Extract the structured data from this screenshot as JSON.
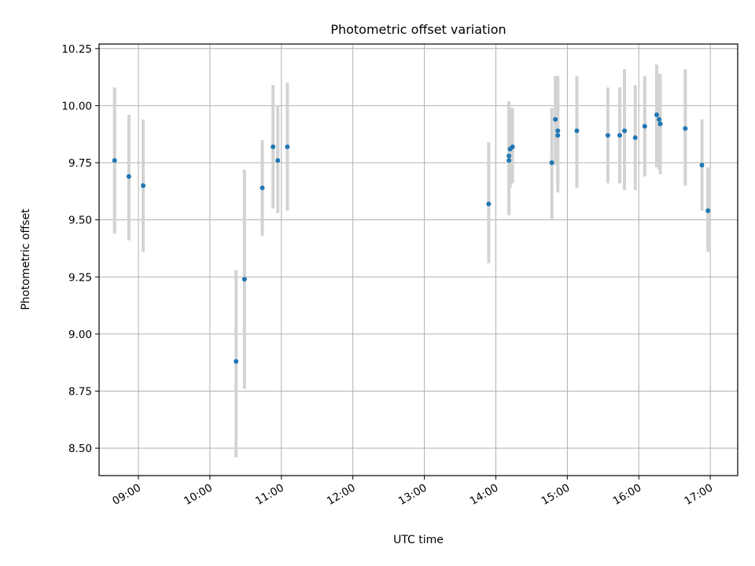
{
  "chart_data": {
    "type": "scatter",
    "title": "Photometric offset variation",
    "xlabel": "UTC time",
    "ylabel": "Photometric offset",
    "xlim": [
      "08:27",
      "17:23"
    ],
    "ylim": [
      8.38,
      10.27
    ],
    "xticks": [
      "09:00",
      "10:00",
      "11:00",
      "12:00",
      "13:00",
      "14:00",
      "15:00",
      "16:00",
      "17:00"
    ],
    "yticks": [
      "8.50",
      "8.75",
      "9.00",
      "9.25",
      "9.50",
      "9.75",
      "10.00",
      "10.25"
    ],
    "grid": true,
    "colors": {
      "points": "#1f77b4",
      "errorbars": "#d3d3d3",
      "grid": "#b0b0b0"
    },
    "points": [
      {
        "x": "08:40",
        "y": 9.76,
        "err_low": 9.44,
        "err_high": 10.08
      },
      {
        "x": "08:52",
        "y": 9.69,
        "err_low": 9.41,
        "err_high": 9.96
      },
      {
        "x": "09:04",
        "y": 9.65,
        "err_low": 9.36,
        "err_high": 9.94
      },
      {
        "x": "10:22",
        "y": 8.88,
        "err_low": 8.46,
        "err_high": 9.28
      },
      {
        "x": "10:29",
        "y": 9.24,
        "err_low": 8.76,
        "err_high": 9.72
      },
      {
        "x": "10:44",
        "y": 9.64,
        "err_low": 9.43,
        "err_high": 9.85
      },
      {
        "x": "10:53",
        "y": 9.82,
        "err_low": 9.55,
        "err_high": 10.09
      },
      {
        "x": "10:57",
        "y": 9.76,
        "err_low": 9.53,
        "err_high": 10.0
      },
      {
        "x": "11:05",
        "y": 9.82,
        "err_low": 9.54,
        "err_high": 10.1
      },
      {
        "x": "13:54",
        "y": 9.57,
        "err_low": 9.31,
        "err_high": 9.84
      },
      {
        "x": "14:11",
        "y": 9.78,
        "err_low": 9.53,
        "err_high": 10.02
      },
      {
        "x": "14:11",
        "y": 9.76,
        "err_low": 9.52,
        "err_high": 10.0
      },
      {
        "x": "14:12",
        "y": 9.81,
        "err_low": 9.64,
        "err_high": 9.99
      },
      {
        "x": "14:14",
        "y": 9.82,
        "err_low": 9.66,
        "err_high": 9.99
      },
      {
        "x": "14:47",
        "y": 9.75,
        "err_low": 9.5,
        "err_high": 9.99
      },
      {
        "x": "14:50",
        "y": 9.94,
        "err_low": 9.74,
        "err_high": 10.13
      },
      {
        "x": "14:52",
        "y": 9.89,
        "err_low": 9.62,
        "err_high": 10.13
      },
      {
        "x": "14:52",
        "y": 9.87,
        "err_low": 9.66,
        "err_high": 10.09
      },
      {
        "x": "15:08",
        "y": 9.89,
        "err_low": 9.64,
        "err_high": 10.13
      },
      {
        "x": "15:34",
        "y": 9.87,
        "err_low": 9.66,
        "err_high": 10.08
      },
      {
        "x": "15:44",
        "y": 9.87,
        "err_low": 9.66,
        "err_high": 10.08
      },
      {
        "x": "15:48",
        "y": 9.89,
        "err_low": 9.63,
        "err_high": 10.16
      },
      {
        "x": "15:57",
        "y": 9.86,
        "err_low": 9.63,
        "err_high": 10.09
      },
      {
        "x": "16:05",
        "y": 9.91,
        "err_low": 9.69,
        "err_high": 10.13
      },
      {
        "x": "16:15",
        "y": 9.96,
        "err_low": 9.73,
        "err_high": 10.18
      },
      {
        "x": "16:17",
        "y": 9.94,
        "err_low": 9.72,
        "err_high": 10.14
      },
      {
        "x": "16:18",
        "y": 9.92,
        "err_low": 9.7,
        "err_high": 10.14
      },
      {
        "x": "16:39",
        "y": 9.9,
        "err_low": 9.65,
        "err_high": 10.16
      },
      {
        "x": "16:53",
        "y": 9.74,
        "err_low": 9.54,
        "err_high": 9.94
      },
      {
        "x": "16:58",
        "y": 9.54,
        "err_low": 9.36,
        "err_high": 9.73
      }
    ]
  }
}
